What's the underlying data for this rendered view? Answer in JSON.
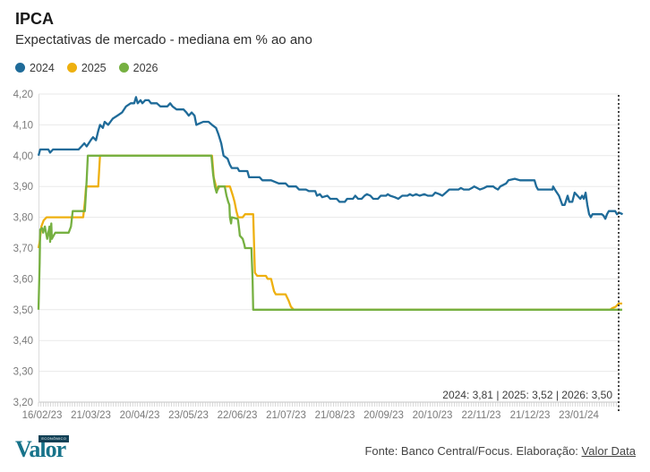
{
  "header": {
    "title": "IPCA",
    "subtitle": "Expectativas de mercado - mediana em % ao ano"
  },
  "legend": [
    {
      "label": "2024",
      "color": "#1f6b99"
    },
    {
      "label": "2025",
      "color": "#eeb00f"
    },
    {
      "label": "2026",
      "color": "#76b041"
    }
  ],
  "footer": {
    "source_prefix": "Fonte: Banco Central/Focus. Elaboração: ",
    "source_link": "Valor Data",
    "logo_wordmark": "Valor",
    "logo_badge": "ECONÔMICO"
  },
  "chart_data": {
    "type": "line",
    "title": "IPCA",
    "subtitle": "Expectativas de mercado - mediana em % ao ano",
    "unit": "% ao ano",
    "grid": true,
    "legend_position": "top",
    "ylim": [
      3.2,
      4.2
    ],
    "ytick_step": 0.1,
    "ytick_labels": [
      "4,20",
      "4,10",
      "4,00",
      "3,90",
      "3,80",
      "3,70",
      "3,60",
      "3,50",
      "3,40",
      "3,30",
      "3,20"
    ],
    "xtick_labels": [
      "16/02/23",
      "21/03/23",
      "20/04/23",
      "23/05/23",
      "22/06/23",
      "21/07/23",
      "21/08/23",
      "20/09/23",
      "20/10/23",
      "22/11/23",
      "21/12/23",
      "23/01/24"
    ],
    "annotation": {
      "text": "2024: 3,81  |  2025: 3,52  |  2026: 3,50",
      "marker_x": 1.0
    },
    "latest": {
      "2024": "3,81",
      "2025": "3,52",
      "2026": "3,50"
    },
    "series": [
      {
        "name": "2024",
        "color": "#1f6b99",
        "points": [
          [
            0.0,
            4.0
          ],
          [
            0.003,
            4.02
          ],
          [
            0.017,
            4.02
          ],
          [
            0.02,
            4.01
          ],
          [
            0.025,
            4.02
          ],
          [
            0.069,
            4.02
          ],
          [
            0.074,
            4.03
          ],
          [
            0.079,
            4.04
          ],
          [
            0.083,
            4.03
          ],
          [
            0.09,
            4.05
          ],
          [
            0.094,
            4.06
          ],
          [
            0.099,
            4.05
          ],
          [
            0.103,
            4.08
          ],
          [
            0.106,
            4.1
          ],
          [
            0.111,
            4.09
          ],
          [
            0.114,
            4.11
          ],
          [
            0.12,
            4.1
          ],
          [
            0.128,
            4.12
          ],
          [
            0.136,
            4.13
          ],
          [
            0.144,
            4.14
          ],
          [
            0.151,
            4.16
          ],
          [
            0.159,
            4.17
          ],
          [
            0.165,
            4.17
          ],
          [
            0.168,
            4.19
          ],
          [
            0.171,
            4.17
          ],
          [
            0.176,
            4.18
          ],
          [
            0.179,
            4.17
          ],
          [
            0.184,
            4.18
          ],
          [
            0.19,
            4.18
          ],
          [
            0.194,
            4.17
          ],
          [
            0.204,
            4.17
          ],
          [
            0.21,
            4.16
          ],
          [
            0.222,
            4.16
          ],
          [
            0.227,
            4.17
          ],
          [
            0.231,
            4.16
          ],
          [
            0.238,
            4.15
          ],
          [
            0.25,
            4.15
          ],
          [
            0.255,
            4.14
          ],
          [
            0.259,
            4.13
          ],
          [
            0.264,
            4.14
          ],
          [
            0.269,
            4.13
          ],
          [
            0.272,
            4.1
          ],
          [
            0.278,
            4.105
          ],
          [
            0.284,
            4.11
          ],
          [
            0.293,
            4.11
          ],
          [
            0.299,
            4.1
          ],
          [
            0.306,
            4.09
          ],
          [
            0.31,
            4.07
          ],
          [
            0.315,
            4.04
          ],
          [
            0.319,
            4.0
          ],
          [
            0.326,
            3.99
          ],
          [
            0.33,
            3.97
          ],
          [
            0.333,
            3.96
          ],
          [
            0.343,
            3.96
          ],
          [
            0.346,
            3.95
          ],
          [
            0.36,
            3.95
          ],
          [
            0.363,
            3.93
          ],
          [
            0.381,
            3.93
          ],
          [
            0.386,
            3.92
          ],
          [
            0.401,
            3.92
          ],
          [
            0.414,
            3.91
          ],
          [
            0.426,
            3.91
          ],
          [
            0.431,
            3.9
          ],
          [
            0.444,
            3.9
          ],
          [
            0.449,
            3.89
          ],
          [
            0.461,
            3.89
          ],
          [
            0.466,
            3.885
          ],
          [
            0.477,
            3.885
          ],
          [
            0.48,
            3.87
          ],
          [
            0.485,
            3.875
          ],
          [
            0.489,
            3.865
          ],
          [
            0.498,
            3.87
          ],
          [
            0.503,
            3.86
          ],
          [
            0.514,
            3.86
          ],
          [
            0.519,
            3.85
          ],
          [
            0.528,
            3.85
          ],
          [
            0.532,
            3.86
          ],
          [
            0.542,
            3.86
          ],
          [
            0.546,
            3.87
          ],
          [
            0.551,
            3.86
          ],
          [
            0.557,
            3.86
          ],
          [
            0.562,
            3.87
          ],
          [
            0.566,
            3.875
          ],
          [
            0.572,
            3.87
          ],
          [
            0.577,
            3.86
          ],
          [
            0.585,
            3.86
          ],
          [
            0.59,
            3.87
          ],
          [
            0.599,
            3.87
          ],
          [
            0.602,
            3.875
          ],
          [
            0.606,
            3.87
          ],
          [
            0.614,
            3.865
          ],
          [
            0.62,
            3.86
          ],
          [
            0.627,
            3.87
          ],
          [
            0.636,
            3.87
          ],
          [
            0.64,
            3.875
          ],
          [
            0.645,
            3.87
          ],
          [
            0.651,
            3.875
          ],
          [
            0.657,
            3.87
          ],
          [
            0.665,
            3.875
          ],
          [
            0.671,
            3.87
          ],
          [
            0.679,
            3.87
          ],
          [
            0.684,
            3.88
          ],
          [
            0.691,
            3.875
          ],
          [
            0.696,
            3.87
          ],
          [
            0.702,
            3.88
          ],
          [
            0.708,
            3.89
          ],
          [
            0.724,
            3.89
          ],
          [
            0.728,
            3.895
          ],
          [
            0.733,
            3.89
          ],
          [
            0.742,
            3.89
          ],
          [
            0.747,
            3.895
          ],
          [
            0.751,
            3.9
          ],
          [
            0.756,
            3.895
          ],
          [
            0.761,
            3.89
          ],
          [
            0.768,
            3.895
          ],
          [
            0.773,
            3.9
          ],
          [
            0.784,
            3.9
          ],
          [
            0.787,
            3.895
          ],
          [
            0.792,
            3.89
          ],
          [
            0.796,
            3.9
          ],
          [
            0.806,
            3.91
          ],
          [
            0.81,
            3.92
          ],
          [
            0.821,
            3.925
          ],
          [
            0.83,
            3.92
          ],
          [
            0.855,
            3.92
          ],
          [
            0.858,
            3.9
          ],
          [
            0.861,
            3.89
          ],
          [
            0.886,
            3.89
          ],
          [
            0.887,
            3.9
          ],
          [
            0.89,
            3.89
          ],
          [
            0.897,
            3.87
          ],
          [
            0.903,
            3.84
          ],
          [
            0.907,
            3.84
          ],
          [
            0.912,
            3.87
          ],
          [
            0.915,
            3.85
          ],
          [
            0.92,
            3.85
          ],
          [
            0.924,
            3.88
          ],
          [
            0.929,
            3.87
          ],
          [
            0.934,
            3.86
          ],
          [
            0.937,
            3.87
          ],
          [
            0.94,
            3.86
          ],
          [
            0.943,
            3.88
          ],
          [
            0.946,
            3.84
          ],
          [
            0.949,
            3.81
          ],
          [
            0.952,
            3.8
          ],
          [
            0.955,
            3.81
          ],
          [
            0.971,
            3.81
          ],
          [
            0.974,
            3.805
          ],
          [
            0.977,
            3.795
          ],
          [
            0.98,
            3.81
          ],
          [
            0.983,
            3.82
          ],
          [
            0.994,
            3.82
          ],
          [
            0.997,
            3.81
          ],
          [
            1.001,
            3.815
          ],
          [
            1.007,
            3.81
          ]
        ]
      },
      {
        "name": "2025",
        "color": "#eeb00f",
        "points": [
          [
            0.0,
            3.7
          ],
          [
            0.002,
            3.72
          ],
          [
            0.005,
            3.77
          ],
          [
            0.009,
            3.79
          ],
          [
            0.014,
            3.8
          ],
          [
            0.077,
            3.8
          ],
          [
            0.08,
            3.85
          ],
          [
            0.082,
            3.9
          ],
          [
            0.103,
            3.9
          ],
          [
            0.106,
            4.0
          ],
          [
            0.299,
            4.0
          ],
          [
            0.302,
            3.93
          ],
          [
            0.306,
            3.9
          ],
          [
            0.309,
            3.89
          ],
          [
            0.312,
            3.9
          ],
          [
            0.33,
            3.9
          ],
          [
            0.335,
            3.87
          ],
          [
            0.338,
            3.85
          ],
          [
            0.341,
            3.82
          ],
          [
            0.344,
            3.8
          ],
          [
            0.352,
            3.8
          ],
          [
            0.356,
            3.81
          ],
          [
            0.37,
            3.81
          ],
          [
            0.373,
            3.62
          ],
          [
            0.377,
            3.61
          ],
          [
            0.392,
            3.61
          ],
          [
            0.395,
            3.6
          ],
          [
            0.401,
            3.6
          ],
          [
            0.406,
            3.56
          ],
          [
            0.409,
            3.55
          ],
          [
            0.426,
            3.55
          ],
          [
            0.431,
            3.53
          ],
          [
            0.435,
            3.51
          ],
          [
            0.44,
            3.5
          ],
          [
            0.985,
            3.5
          ],
          [
            0.989,
            3.505
          ],
          [
            0.995,
            3.51
          ],
          [
            1.0,
            3.52
          ],
          [
            1.006,
            3.52
          ]
        ]
      },
      {
        "name": "2026",
        "color": "#76b041",
        "points": [
          [
            0.0,
            3.5
          ],
          [
            0.002,
            3.65
          ],
          [
            0.003,
            3.76
          ],
          [
            0.006,
            3.765
          ],
          [
            0.008,
            3.75
          ],
          [
            0.011,
            3.77
          ],
          [
            0.015,
            3.73
          ],
          [
            0.019,
            3.77
          ],
          [
            0.02,
            3.72
          ],
          [
            0.022,
            3.78
          ],
          [
            0.023,
            3.73
          ],
          [
            0.026,
            3.74
          ],
          [
            0.029,
            3.75
          ],
          [
            0.052,
            3.75
          ],
          [
            0.056,
            3.77
          ],
          [
            0.059,
            3.82
          ],
          [
            0.08,
            3.82
          ],
          [
            0.083,
            3.92
          ],
          [
            0.085,
            4.0
          ],
          [
            0.298,
            4.0
          ],
          [
            0.301,
            3.94
          ],
          [
            0.304,
            3.9
          ],
          [
            0.307,
            3.88
          ],
          [
            0.31,
            3.9
          ],
          [
            0.321,
            3.9
          ],
          [
            0.324,
            3.87
          ],
          [
            0.327,
            3.85
          ],
          [
            0.329,
            3.84
          ],
          [
            0.33,
            3.8
          ],
          [
            0.332,
            3.78
          ],
          [
            0.333,
            3.8
          ],
          [
            0.343,
            3.795
          ],
          [
            0.344,
            3.79
          ],
          [
            0.346,
            3.76
          ],
          [
            0.347,
            3.74
          ],
          [
            0.352,
            3.73
          ],
          [
            0.355,
            3.71
          ],
          [
            0.356,
            3.7
          ],
          [
            0.367,
            3.7
          ],
          [
            0.369,
            3.6
          ],
          [
            0.37,
            3.5
          ],
          [
            1.006,
            3.5
          ]
        ]
      }
    ]
  }
}
